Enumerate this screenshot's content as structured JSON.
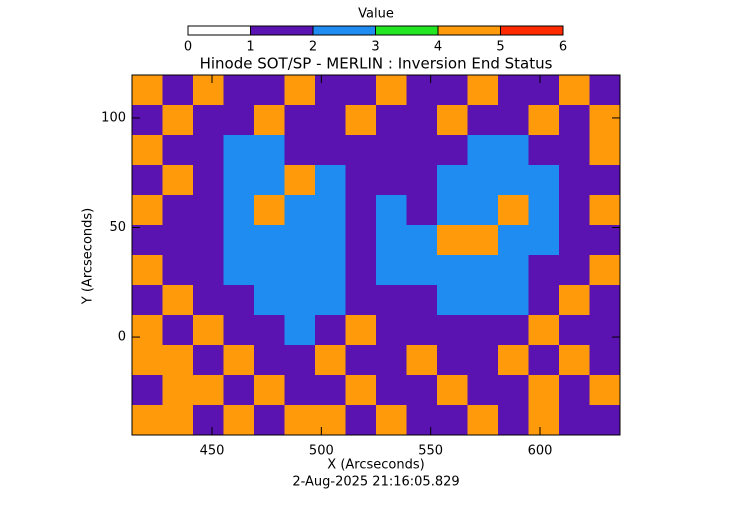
{
  "chart_data": {
    "type": "heatmap",
    "title": "Hinode SOT/SP - MERLIN : Inversion End Status",
    "xlabel": "X (Arcseconds)",
    "ylabel": "Y (Arcseconds)",
    "footer": "2-Aug-2025 21:16:05.829",
    "xlim": [
      413.4,
      636.6
    ],
    "ylim": [
      -44.7,
      119.6
    ],
    "xticks": [
      450,
      500,
      550,
      600
    ],
    "yticks": [
      0,
      50,
      100
    ],
    "colorbar": {
      "label": "Value",
      "lim": [
        0,
        6
      ],
      "ticks": [
        0,
        1,
        2,
        3,
        4,
        5,
        6
      ],
      "colors": [
        "#ffffff",
        "#5a12b0",
        "#1e8cf0",
        "#22e622",
        "#ff9a0a",
        "#ff2a00"
      ]
    },
    "z": [
      [
        4,
        1,
        4,
        1,
        1,
        4,
        1,
        1,
        4,
        1,
        1,
        4,
        1,
        1,
        4,
        1
      ],
      [
        1,
        4,
        1,
        1,
        4,
        1,
        1,
        4,
        1,
        1,
        4,
        1,
        1,
        4,
        1,
        4
      ],
      [
        4,
        1,
        1,
        2,
        2,
        1,
        1,
        1,
        1,
        1,
        1,
        2,
        2,
        1,
        1,
        4
      ],
      [
        1,
        4,
        1,
        2,
        2,
        4,
        2,
        1,
        1,
        1,
        2,
        2,
        2,
        2,
        1,
        1
      ],
      [
        4,
        1,
        1,
        2,
        4,
        2,
        2,
        1,
        2,
        1,
        2,
        2,
        4,
        2,
        1,
        4
      ],
      [
        1,
        1,
        1,
        2,
        2,
        2,
        2,
        1,
        2,
        2,
        4,
        4,
        2,
        2,
        1,
        1
      ],
      [
        4,
        1,
        1,
        2,
        2,
        2,
        2,
        1,
        2,
        2,
        2,
        2,
        2,
        1,
        1,
        4
      ],
      [
        1,
        4,
        1,
        1,
        2,
        2,
        2,
        1,
        1,
        1,
        2,
        2,
        2,
        1,
        4,
        1
      ],
      [
        4,
        1,
        4,
        1,
        1,
        2,
        1,
        4,
        1,
        1,
        1,
        1,
        1,
        4,
        1,
        1
      ],
      [
        4,
        4,
        1,
        4,
        1,
        1,
        4,
        1,
        1,
        4,
        1,
        1,
        4,
        1,
        4,
        1
      ],
      [
        1,
        4,
        4,
        1,
        4,
        1,
        1,
        4,
        1,
        1,
        4,
        1,
        1,
        4,
        1,
        4
      ],
      [
        4,
        4,
        1,
        4,
        1,
        4,
        4,
        1,
        4,
        1,
        1,
        4,
        1,
        4,
        1,
        1
      ]
    ]
  }
}
